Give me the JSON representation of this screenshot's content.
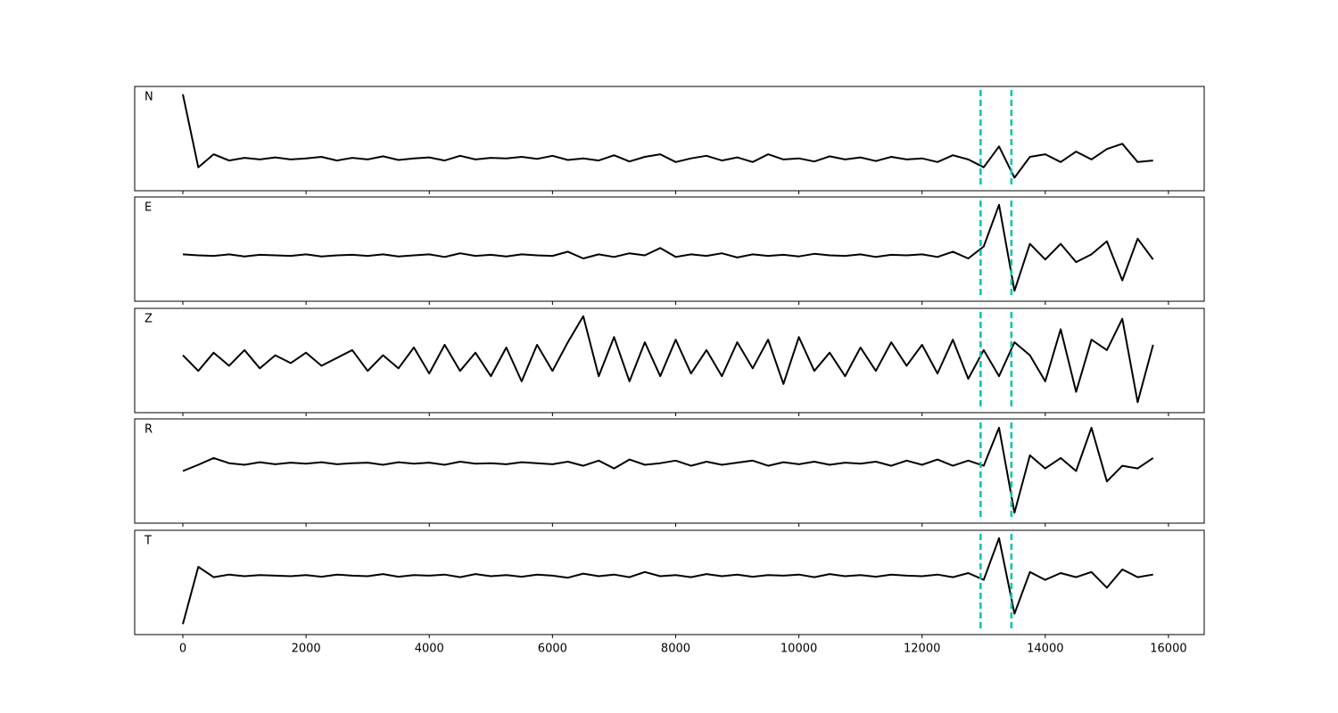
{
  "chart_data": [
    {
      "type": "line",
      "label": "N",
      "color": "#000000",
      "vline_color": "#00c4b0",
      "xlim": [
        -782,
        16580
      ],
      "ylim": [
        -1,
        1
      ],
      "xticks": [
        0,
        2000,
        4000,
        6000,
        8000,
        10000,
        12000,
        14000,
        16000
      ],
      "xtick_labels": false,
      "vlines": [
        12950,
        13450
      ],
      "x": [
        0,
        250,
        500,
        750,
        1000,
        1250,
        1500,
        1750,
        2000,
        2250,
        2500,
        2750,
        3000,
        3250,
        3500,
        3750,
        4000,
        4250,
        4500,
        4750,
        5000,
        5250,
        5500,
        5750,
        6000,
        6250,
        6500,
        6750,
        7000,
        7250,
        7500,
        7750,
        8000,
        8250,
        8500,
        8750,
        9000,
        9250,
        9500,
        9750,
        10000,
        10250,
        10500,
        10750,
        11000,
        11250,
        11500,
        11750,
        12000,
        12250,
        12500,
        12750,
        13000,
        13250,
        13500,
        13750,
        14000,
        14250,
        14500,
        14750,
        15000,
        15250,
        15500,
        15750
      ],
      "values": [
        0.85,
        -0.55,
        -0.3,
        -0.42,
        -0.37,
        -0.4,
        -0.36,
        -0.4,
        -0.38,
        -0.35,
        -0.42,
        -0.37,
        -0.4,
        -0.34,
        -0.41,
        -0.38,
        -0.36,
        -0.42,
        -0.33,
        -0.4,
        -0.37,
        -0.38,
        -0.35,
        -0.39,
        -0.33,
        -0.41,
        -0.38,
        -0.42,
        -0.32,
        -0.44,
        -0.35,
        -0.3,
        -0.45,
        -0.38,
        -0.33,
        -0.42,
        -0.36,
        -0.45,
        -0.3,
        -0.4,
        -0.38,
        -0.44,
        -0.34,
        -0.4,
        -0.36,
        -0.43,
        -0.35,
        -0.4,
        -0.38,
        -0.45,
        -0.32,
        -0.4,
        -0.55,
        -0.15,
        -0.75,
        -0.35,
        -0.3,
        -0.45,
        -0.25,
        -0.4,
        -0.2,
        -0.1,
        -0.45,
        -0.42
      ]
    },
    {
      "type": "line",
      "label": "E",
      "color": "#000000",
      "vline_color": "#00c4b0",
      "xlim": [
        -782,
        16580
      ],
      "ylim": [
        -1,
        1
      ],
      "xticks": [
        0,
        2000,
        4000,
        6000,
        8000,
        10000,
        12000,
        14000,
        16000
      ],
      "xtick_labels": false,
      "vlines": [
        12950,
        13450
      ],
      "x": [
        0,
        250,
        500,
        750,
        1000,
        1250,
        1500,
        1750,
        2000,
        2250,
        2500,
        2750,
        3000,
        3250,
        3500,
        3750,
        4000,
        4250,
        4500,
        4750,
        5000,
        5250,
        5500,
        5750,
        6000,
        6250,
        6500,
        6750,
        7000,
        7250,
        7500,
        7750,
        8000,
        8250,
        8500,
        8750,
        9000,
        9250,
        9500,
        9750,
        10000,
        10250,
        10500,
        10750,
        11000,
        11250,
        11500,
        11750,
        12000,
        12250,
        12500,
        12750,
        13000,
        13250,
        13500,
        13750,
        14000,
        14250,
        14500,
        14750,
        15000,
        15250,
        15500,
        15750
      ],
      "values": [
        -0.1,
        -0.12,
        -0.13,
        -0.1,
        -0.14,
        -0.11,
        -0.12,
        -0.13,
        -0.1,
        -0.14,
        -0.12,
        -0.11,
        -0.13,
        -0.1,
        -0.14,
        -0.12,
        -0.1,
        -0.15,
        -0.08,
        -0.13,
        -0.11,
        -0.14,
        -0.1,
        -0.12,
        -0.13,
        -0.05,
        -0.18,
        -0.1,
        -0.15,
        -0.08,
        -0.12,
        0.02,
        -0.15,
        -0.1,
        -0.13,
        -0.08,
        -0.16,
        -0.1,
        -0.13,
        -0.11,
        -0.14,
        -0.09,
        -0.12,
        -0.13,
        -0.1,
        -0.15,
        -0.11,
        -0.12,
        -0.1,
        -0.15,
        -0.05,
        -0.18,
        0.05,
        0.85,
        -0.8,
        0.1,
        -0.2,
        0.1,
        -0.25,
        -0.1,
        0.15,
        -0.6,
        0.2,
        -0.2
      ]
    },
    {
      "type": "line",
      "label": "Z",
      "color": "#000000",
      "vline_color": "#00c4b0",
      "xlim": [
        -782,
        16580
      ],
      "ylim": [
        -1,
        1
      ],
      "xticks": [
        0,
        2000,
        4000,
        6000,
        8000,
        10000,
        12000,
        14000,
        16000
      ],
      "xtick_labels": false,
      "vlines": [
        12950,
        13450
      ],
      "x": [
        0,
        250,
        500,
        750,
        1000,
        1250,
        1500,
        1750,
        2000,
        2250,
        2500,
        2750,
        3000,
        3250,
        3500,
        3750,
        4000,
        4250,
        4500,
        4750,
        5000,
        5250,
        5500,
        5750,
        6000,
        6250,
        6500,
        6750,
        7000,
        7250,
        7500,
        7750,
        8000,
        8250,
        8500,
        8750,
        9000,
        9250,
        9500,
        9750,
        10000,
        10250,
        10500,
        10750,
        11000,
        11250,
        11500,
        11750,
        12000,
        12250,
        12500,
        12750,
        13000,
        13250,
        13500,
        13750,
        14000,
        14250,
        14500,
        14750,
        15000,
        15250,
        15500,
        15750
      ],
      "values": [
        0.1,
        -0.2,
        0.15,
        -0.1,
        0.2,
        -0.15,
        0.1,
        -0.05,
        0.15,
        -0.1,
        0.05,
        0.2,
        -0.2,
        0.1,
        -0.15,
        0.25,
        -0.25,
        0.3,
        -0.2,
        0.15,
        -0.3,
        0.25,
        -0.4,
        0.3,
        -0.2,
        0.35,
        0.85,
        -0.3,
        0.45,
        -0.4,
        0.35,
        -0.3,
        0.4,
        -0.25,
        0.2,
        -0.3,
        0.35,
        -0.15,
        0.4,
        -0.45,
        0.45,
        -0.2,
        0.15,
        -0.3,
        0.25,
        -0.2,
        0.35,
        -0.1,
        0.3,
        -0.25,
        0.4,
        -0.35,
        0.2,
        -0.3,
        0.35,
        0.1,
        -0.4,
        0.6,
        -0.6,
        0.4,
        0.2,
        0.8,
        -0.8,
        0.3
      ]
    },
    {
      "type": "line",
      "label": "R",
      "color": "#000000",
      "vline_color": "#00c4b0",
      "xlim": [
        -782,
        16580
      ],
      "ylim": [
        -1,
        1
      ],
      "xticks": [
        0,
        2000,
        4000,
        6000,
        8000,
        10000,
        12000,
        14000,
        16000
      ],
      "xtick_labels": false,
      "vlines": [
        12950,
        13450
      ],
      "x": [
        0,
        250,
        500,
        750,
        1000,
        1250,
        1500,
        1750,
        2000,
        2250,
        2500,
        2750,
        3000,
        3250,
        3500,
        3750,
        4000,
        4250,
        4500,
        4750,
        5000,
        5250,
        5500,
        5750,
        6000,
        6250,
        6500,
        6750,
        7000,
        7250,
        7500,
        7750,
        8000,
        8250,
        8500,
        8750,
        9000,
        9250,
        9500,
        9750,
        10000,
        10250,
        10500,
        10750,
        11000,
        11250,
        11500,
        11750,
        12000,
        12250,
        12500,
        12750,
        13000,
        13250,
        13500,
        13750,
        14000,
        14250,
        14500,
        14750,
        15000,
        15250,
        15500,
        15750
      ],
      "values": [
        0.0,
        0.12,
        0.25,
        0.15,
        0.12,
        0.17,
        0.13,
        0.16,
        0.14,
        0.17,
        0.13,
        0.15,
        0.16,
        0.12,
        0.17,
        0.14,
        0.16,
        0.12,
        0.18,
        0.14,
        0.15,
        0.13,
        0.17,
        0.15,
        0.13,
        0.18,
        0.1,
        0.2,
        0.05,
        0.22,
        0.12,
        0.15,
        0.2,
        0.1,
        0.18,
        0.12,
        0.16,
        0.2,
        0.1,
        0.17,
        0.13,
        0.18,
        0.12,
        0.16,
        0.14,
        0.18,
        0.1,
        0.2,
        0.12,
        0.22,
        0.1,
        0.2,
        0.1,
        0.83,
        -0.8,
        0.3,
        0.05,
        0.25,
        0.0,
        0.83,
        -0.2,
        0.1,
        0.05,
        0.25
      ]
    },
    {
      "type": "line",
      "label": "T",
      "color": "#000000",
      "vline_color": "#00c4b0",
      "xlim": [
        -782,
        16580
      ],
      "ylim": [
        -1,
        1
      ],
      "xticks": [
        0,
        2000,
        4000,
        6000,
        8000,
        10000,
        12000,
        14000,
        16000
      ],
      "xtick_labels": true,
      "vlines": [
        12950,
        13450
      ],
      "x": [
        0,
        250,
        500,
        750,
        1000,
        1250,
        1500,
        1750,
        2000,
        2250,
        2500,
        2750,
        3000,
        3250,
        3500,
        3750,
        4000,
        4250,
        4500,
        4750,
        5000,
        5250,
        5500,
        5750,
        6000,
        6250,
        6500,
        6750,
        7000,
        7250,
        7500,
        7750,
        8000,
        8250,
        8500,
        8750,
        9000,
        9250,
        9500,
        9750,
        10000,
        10250,
        10500,
        10750,
        11000,
        11250,
        11500,
        11750,
        12000,
        12250,
        12500,
        12750,
        13000,
        13250,
        13500,
        13750,
        14000,
        14250,
        14500,
        14750,
        15000,
        15250,
        15500,
        15750
      ],
      "values": [
        -0.8,
        0.3,
        0.1,
        0.15,
        0.12,
        0.14,
        0.13,
        0.12,
        0.14,
        0.11,
        0.15,
        0.13,
        0.12,
        0.16,
        0.11,
        0.14,
        0.13,
        0.15,
        0.1,
        0.16,
        0.12,
        0.14,
        0.11,
        0.15,
        0.13,
        0.09,
        0.17,
        0.12,
        0.15,
        0.1,
        0.2,
        0.12,
        0.14,
        0.1,
        0.16,
        0.12,
        0.15,
        0.11,
        0.14,
        0.13,
        0.15,
        0.1,
        0.16,
        0.12,
        0.14,
        0.11,
        0.15,
        0.13,
        0.12,
        0.15,
        0.1,
        0.18,
        0.05,
        0.85,
        -0.6,
        0.2,
        0.05,
        0.18,
        0.1,
        0.2,
        -0.1,
        0.25,
        0.1,
        0.15
      ]
    }
  ]
}
